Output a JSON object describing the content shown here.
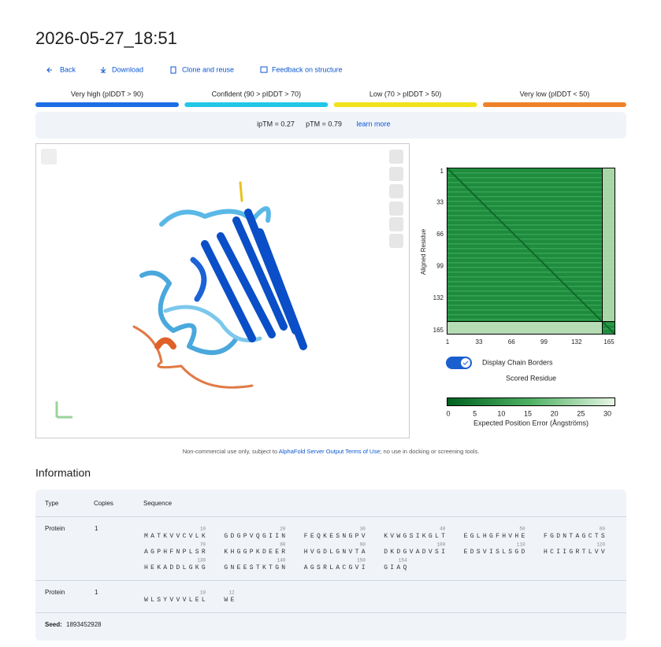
{
  "header": {
    "title": "2026-05-27_18:51"
  },
  "nav": [
    "Back",
    "Download",
    "Clone and reuse",
    "Feedback on structure"
  ],
  "plddt_legend": [
    {
      "label": "Very high (pIDDT > 90)",
      "color": "#1d6ee5"
    },
    {
      "label": "Confident (90 > pIDDT > 70)",
      "color": "#22c7e8"
    },
    {
      "label": "Low (70 > pIDDT > 50)",
      "color": "#f1e21b"
    },
    {
      "label": "Very low (pIDDT < 50)",
      "color": "#ef8228"
    }
  ],
  "metrics": {
    "iptm": "ipTM = 0.27",
    "ptm": "pTM = 0.79",
    "link": "learn more"
  },
  "pae": {
    "y_label": "Aligned Residue",
    "ticks": [
      1,
      33,
      66,
      99,
      132,
      165
    ],
    "toggle_label": "Display Chain Borders",
    "x_label": "Scored Residue",
    "colorbar_ticks": [
      0,
      5,
      10,
      15,
      20,
      25,
      30
    ],
    "colorbar_label": "Expected Position Error (Ångströms)"
  },
  "footer": {
    "before": "Non-commercial use only, subject to ",
    "link": "AlphaFold Server Output Terms of Use",
    "after": "; no use in docking or screening tools."
  },
  "information": {
    "title": "Information",
    "columns": [
      "Type",
      "Copies",
      "Sequence"
    ],
    "rows": [
      {
        "type": "Protein",
        "copies": 1,
        "chunks": [
          {
            "seq": "MATKVVCVLK",
            "pos": 10
          },
          {
            "seq": "GDGPVQGIIN",
            "pos": 20
          },
          {
            "seq": "FEQKESNGPV",
            "pos": 30
          },
          {
            "seq": "KVWGSIKGLT",
            "pos": 40
          },
          {
            "seq": "EGLHGFHVHE",
            "pos": 50
          },
          {
            "seq": "FGDNTAGCTS",
            "pos": 60
          },
          {
            "seq": "AGPHFNPLSR",
            "pos": 70
          },
          {
            "seq": "KHGGPKDEER",
            "pos": 80
          },
          {
            "seq": "HVGDLGNVTA",
            "pos": 90
          },
          {
            "seq": "DKDGVADVSI",
            "pos": 100
          },
          {
            "seq": "EDSVISLSGD",
            "pos": 110
          },
          {
            "seq": "HCIIGRTLVV",
            "pos": 120
          },
          {
            "seq": "HEKADDLGKG",
            "pos": 130
          },
          {
            "seq": "GNEESTKTGN",
            "pos": 140
          },
          {
            "seq": "AGSRLACGVI",
            "pos": 150
          },
          {
            "seq": "GIAQ",
            "pos": 154
          }
        ]
      },
      {
        "type": "Protein",
        "copies": 1,
        "chunks": [
          {
            "seq": "WLSYVVVLEL",
            "pos": 10
          },
          {
            "seq": "WE",
            "pos": 12
          }
        ]
      }
    ],
    "seed_label": "Seed:",
    "seed": "1893452928"
  }
}
